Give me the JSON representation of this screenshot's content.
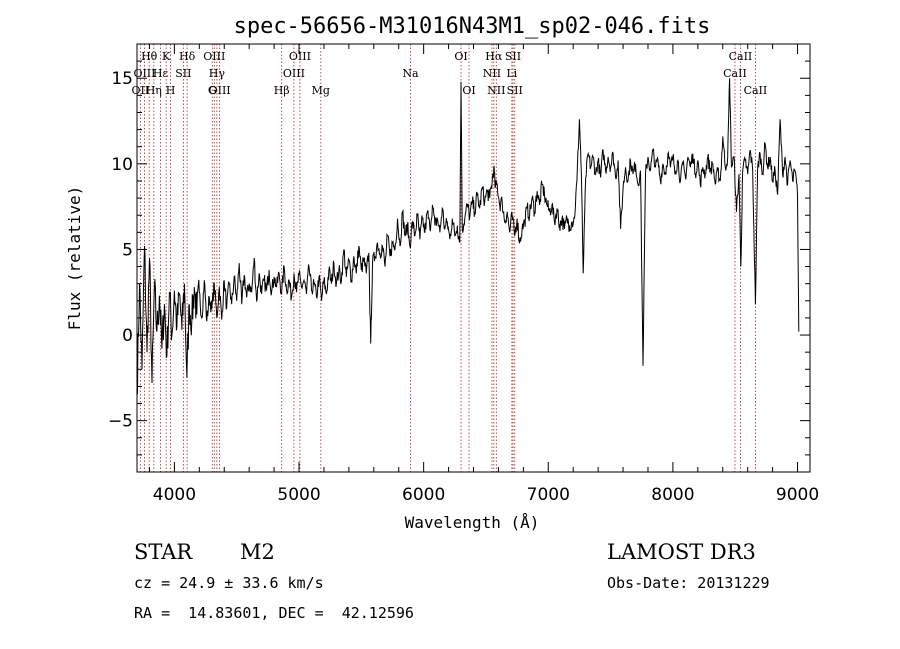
{
  "chart_data": {
    "type": "line",
    "title": "spec-56656-M31016N43M1_sp02-046.fits",
    "xlabel": "Wavelength (Å)",
    "ylabel": "Flux (relative)",
    "xlim": [
      3700,
      9100
    ],
    "ylim": [
      -8,
      17
    ],
    "xticks": [
      4000,
      5000,
      6000,
      7000,
      8000,
      9000
    ],
    "yticks": [
      -5,
      0,
      5,
      10,
      15
    ],
    "x_minor_step": 200,
    "y_minor_step": 1,
    "spectrum": [
      [
        3700,
        -3.5
      ],
      [
        3720,
        3.0
      ],
      [
        3740,
        -2.0
      ],
      [
        3760,
        5.2
      ],
      [
        3780,
        -1.0
      ],
      [
        3800,
        4.5
      ],
      [
        3820,
        -2.8
      ],
      [
        3840,
        2.8
      ],
      [
        3860,
        0.2
      ],
      [
        3880,
        2.3
      ],
      [
        3900,
        -0.8
      ],
      [
        3920,
        1.8
      ],
      [
        3940,
        -1.2
      ],
      [
        3960,
        2.5
      ],
      [
        3980,
        0.0
      ],
      [
        4000,
        2.6
      ],
      [
        4020,
        0.5
      ],
      [
        4040,
        2.4
      ],
      [
        4060,
        0.3
      ],
      [
        4080,
        3.0
      ],
      [
        4100,
        -2.5
      ],
      [
        4120,
        1.8
      ],
      [
        4140,
        0.8
      ],
      [
        4160,
        2.8
      ],
      [
        4180,
        1.2
      ],
      [
        4200,
        2.5
      ],
      [
        4220,
        1.0
      ],
      [
        4240,
        3.2
      ],
      [
        4260,
        0.8
      ],
      [
        4280,
        2.2
      ],
      [
        4300,
        1.5
      ],
      [
        4320,
        3.0
      ],
      [
        4340,
        1.0
      ],
      [
        4360,
        2.8
      ],
      [
        4380,
        0.9
      ],
      [
        4400,
        3.2
      ],
      [
        4420,
        1.6
      ],
      [
        4440,
        3.0
      ],
      [
        4460,
        1.8
      ],
      [
        4480,
        3.4
      ],
      [
        4500,
        2.0
      ],
      [
        4520,
        4.2
      ],
      [
        4540,
        1.8
      ],
      [
        4560,
        3.5
      ],
      [
        4580,
        2.2
      ],
      [
        4600,
        3.0
      ],
      [
        4620,
        2.5
      ],
      [
        4640,
        4.5
      ],
      [
        4660,
        2.0
      ],
      [
        4680,
        3.6
      ],
      [
        4700,
        2.4
      ],
      [
        4720,
        3.2
      ],
      [
        4740,
        2.6
      ],
      [
        4760,
        3.8
      ],
      [
        4780,
        2.5
      ],
      [
        4800,
        3.4
      ],
      [
        4820,
        2.8
      ],
      [
        4840,
        3.6
      ],
      [
        4860,
        2.4
      ],
      [
        4880,
        4.0
      ],
      [
        4900,
        2.6
      ],
      [
        4920,
        3.2
      ],
      [
        4940,
        2.2
      ],
      [
        4960,
        3.6
      ],
      [
        4980,
        2.5
      ],
      [
        5000,
        3.5
      ],
      [
        5020,
        2.8
      ],
      [
        5040,
        3.2
      ],
      [
        5060,
        2.4
      ],
      [
        5080,
        4.0
      ],
      [
        5100,
        2.6
      ],
      [
        5120,
        3.0
      ],
      [
        5140,
        2.2
      ],
      [
        5160,
        3.4
      ],
      [
        5180,
        2.0
      ],
      [
        5200,
        3.2
      ],
      [
        5220,
        2.4
      ],
      [
        5240,
        3.8
      ],
      [
        5260,
        3.0
      ],
      [
        5280,
        4.2
      ],
      [
        5300,
        3.0
      ],
      [
        5320,
        3.8
      ],
      [
        5340,
        3.2
      ],
      [
        5360,
        5.0
      ],
      [
        5380,
        3.4
      ],
      [
        5400,
        4.4
      ],
      [
        5420,
        3.2
      ],
      [
        5440,
        4.6
      ],
      [
        5460,
        3.6
      ],
      [
        5480,
        5.2
      ],
      [
        5500,
        3.8
      ],
      [
        5520,
        4.4
      ],
      [
        5540,
        3.6
      ],
      [
        5560,
        4.8
      ],
      [
        5575,
        -0.5
      ],
      [
        5590,
        4.2
      ],
      [
        5610,
        4.6
      ],
      [
        5630,
        5.4
      ],
      [
        5650,
        4.8
      ],
      [
        5670,
        5.2
      ],
      [
        5690,
        4.0
      ],
      [
        5710,
        5.8
      ],
      [
        5730,
        4.6
      ],
      [
        5750,
        5.4
      ],
      [
        5770,
        5.0
      ],
      [
        5790,
        6.8
      ],
      [
        5810,
        5.2
      ],
      [
        5830,
        7.2
      ],
      [
        5850,
        5.8
      ],
      [
        5870,
        6.4
      ],
      [
        5890,
        5.2
      ],
      [
        5910,
        6.6
      ],
      [
        5930,
        5.8
      ],
      [
        5950,
        7.0
      ],
      [
        5970,
        5.6
      ],
      [
        5990,
        6.8
      ],
      [
        6010,
        6.0
      ],
      [
        6030,
        7.2
      ],
      [
        6050,
        6.2
      ],
      [
        6070,
        7.6
      ],
      [
        6090,
        6.4
      ],
      [
        6110,
        6.8
      ],
      [
        6130,
        6.0
      ],
      [
        6150,
        7.4
      ],
      [
        6170,
        6.2
      ],
      [
        6190,
        6.6
      ],
      [
        6210,
        5.6
      ],
      [
        6230,
        6.8
      ],
      [
        6250,
        5.8
      ],
      [
        6270,
        6.4
      ],
      [
        6290,
        5.4
      ],
      [
        6300,
        14.8
      ],
      [
        6310,
        6.2
      ],
      [
        6330,
        6.8
      ],
      [
        6350,
        7.6
      ],
      [
        6370,
        6.9
      ],
      [
        6390,
        7.8
      ],
      [
        6410,
        7.2
      ],
      [
        6430,
        8.2
      ],
      [
        6450,
        7.4
      ],
      [
        6470,
        8.6
      ],
      [
        6490,
        7.8
      ],
      [
        6510,
        8.4
      ],
      [
        6530,
        8.0
      ],
      [
        6550,
        9.0
      ],
      [
        6563,
        9.8
      ],
      [
        6575,
        8.6
      ],
      [
        6590,
        8.8
      ],
      [
        6610,
        7.6
      ],
      [
        6630,
        7.8
      ],
      [
        6650,
        6.6
      ],
      [
        6670,
        7.2
      ],
      [
        6690,
        6.0
      ],
      [
        6710,
        7.0
      ],
      [
        6730,
        5.8
      ],
      [
        6750,
        6.8
      ],
      [
        6770,
        5.4
      ],
      [
        6790,
        6.2
      ],
      [
        6810,
        6.6
      ],
      [
        6830,
        7.4
      ],
      [
        6850,
        7.0
      ],
      [
        6870,
        8.0
      ],
      [
        6890,
        7.2
      ],
      [
        6910,
        8.4
      ],
      [
        6930,
        7.6
      ],
      [
        6950,
        8.8
      ],
      [
        6970,
        8.2
      ],
      [
        6990,
        7.6
      ],
      [
        7010,
        7.2
      ],
      [
        7030,
        7.6
      ],
      [
        7050,
        6.6
      ],
      [
        7070,
        7.4
      ],
      [
        7090,
        6.4
      ],
      [
        7110,
        6.8
      ],
      [
        7130,
        6.2
      ],
      [
        7150,
        6.8
      ],
      [
        7170,
        6.4
      ],
      [
        7190,
        6.6
      ],
      [
        7210,
        6.8
      ],
      [
        7230,
        9.0
      ],
      [
        7250,
        12.6
      ],
      [
        7265,
        9.6
      ],
      [
        7280,
        3.6
      ],
      [
        7300,
        9.2
      ],
      [
        7320,
        10.6
      ],
      [
        7340,
        9.8
      ],
      [
        7360,
        10.4
      ],
      [
        7380,
        9.4
      ],
      [
        7400,
        10.2
      ],
      [
        7420,
        9.2
      ],
      [
        7440,
        10.8
      ],
      [
        7460,
        9.6
      ],
      [
        7480,
        10.4
      ],
      [
        7500,
        9.8
      ],
      [
        7520,
        10.6
      ],
      [
        7540,
        9.2
      ],
      [
        7560,
        10.2
      ],
      [
        7580,
        6.2
      ],
      [
        7600,
        8.6
      ],
      [
        7620,
        9.8
      ],
      [
        7640,
        9.0
      ],
      [
        7660,
        10.2
      ],
      [
        7680,
        9.4
      ],
      [
        7700,
        10.0
      ],
      [
        7720,
        8.8
      ],
      [
        7740,
        9.6
      ],
      [
        7760,
        -1.8
      ],
      [
        7780,
        9.4
      ],
      [
        7800,
        10.4
      ],
      [
        7820,
        9.6
      ],
      [
        7840,
        10.8
      ],
      [
        7860,
        9.8
      ],
      [
        7880,
        10.2
      ],
      [
        7900,
        9.0
      ],
      [
        7920,
        10.0
      ],
      [
        7940,
        9.4
      ],
      [
        7960,
        10.6
      ],
      [
        7980,
        9.8
      ],
      [
        8000,
        10.4
      ],
      [
        8020,
        9.6
      ],
      [
        8040,
        10.2
      ],
      [
        8060,
        9.0
      ],
      [
        8080,
        10.0
      ],
      [
        8100,
        9.2
      ],
      [
        8120,
        10.4
      ],
      [
        8140,
        9.8
      ],
      [
        8160,
        10.6
      ],
      [
        8180,
        9.4
      ],
      [
        8200,
        10.2
      ],
      [
        8220,
        8.8
      ],
      [
        8240,
        9.8
      ],
      [
        8260,
        9.4
      ],
      [
        8280,
        10.4
      ],
      [
        8300,
        9.6
      ],
      [
        8320,
        10.0
      ],
      [
        8340,
        8.8
      ],
      [
        8360,
        9.6
      ],
      [
        8380,
        9.0
      ],
      [
        8400,
        11.6
      ],
      [
        8420,
        9.8
      ],
      [
        8440,
        10.4
      ],
      [
        8455,
        15.0
      ],
      [
        8470,
        9.8
      ],
      [
        8490,
        10.4
      ],
      [
        8510,
        7.2
      ],
      [
        8530,
        9.4
      ],
      [
        8545,
        4.0
      ],
      [
        8560,
        9.6
      ],
      [
        8580,
        10.2
      ],
      [
        8600,
        9.4
      ],
      [
        8620,
        10.8
      ],
      [
        8640,
        9.6
      ],
      [
        8662,
        1.8
      ],
      [
        8680,
        9.8
      ],
      [
        8700,
        10.6
      ],
      [
        8720,
        9.4
      ],
      [
        8740,
        11.2
      ],
      [
        8760,
        9.8
      ],
      [
        8780,
        10.4
      ],
      [
        8800,
        9.0
      ],
      [
        8820,
        9.6
      ],
      [
        8840,
        8.2
      ],
      [
        8860,
        12.6
      ],
      [
        8880,
        9.4
      ],
      [
        8900,
        10.4
      ],
      [
        8920,
        8.8
      ],
      [
        8940,
        10.2
      ],
      [
        8960,
        9.0
      ],
      [
        8980,
        9.6
      ],
      [
        9000,
        8.2
      ],
      [
        9010,
        0.2
      ]
    ],
    "lines": [
      {
        "label": "Hθ",
        "wl": 3798,
        "row": 0
      },
      {
        "label": "OII",
        "wl": 3727,
        "row": 2
      },
      {
        "label": "OIII",
        "wl": 3760,
        "row": 1
      },
      {
        "label": "Hη",
        "wl": 3835,
        "row": 2
      },
      {
        "label": "Hε",
        "wl": 3889,
        "row": 1
      },
      {
        "label": "K",
        "wl": 3934,
        "row": 0
      },
      {
        "label": "H",
        "wl": 3969,
        "row": 2
      },
      {
        "label": "SII",
        "wl": 4072,
        "row": 1
      },
      {
        "label": "Hδ",
        "wl": 4102,
        "row": 0
      },
      {
        "label": "OIII",
        "wl": 4320,
        "row": 0
      },
      {
        "label": "Hγ",
        "wl": 4341,
        "row": 1
      },
      {
        "label": "G",
        "wl": 4304,
        "row": 2
      },
      {
        "label": "OIII",
        "wl": 4363,
        "row": 2
      },
      {
        "label": "Hβ",
        "wl": 4861,
        "row": 2
      },
      {
        "label": "OIII",
        "wl": 4959,
        "row": 1
      },
      {
        "label": "OIII",
        "wl": 5007,
        "row": 0
      },
      {
        "label": "Mg",
        "wl": 5175,
        "row": 2
      },
      {
        "label": "Na",
        "wl": 5894,
        "row": 1
      },
      {
        "label": "OI",
        "wl": 6300,
        "row": 0
      },
      {
        "label": "OI",
        "wl": 6364,
        "row": 2
      },
      {
        "label": "NII",
        "wl": 6548,
        "row": 1
      },
      {
        "label": "Hα",
        "wl": 6563,
        "row": 0
      },
      {
        "label": "NII",
        "wl": 6583,
        "row": 2
      },
      {
        "label": "SII",
        "wl": 6717,
        "row": 0
      },
      {
        "label": "Li",
        "wl": 6708,
        "row": 1
      },
      {
        "label": "SII",
        "wl": 6731,
        "row": 2
      },
      {
        "label": "CaII",
        "wl": 8498,
        "row": 1
      },
      {
        "label": "CaII",
        "wl": 8542,
        "row": 0
      },
      {
        "label": "CaII",
        "wl": 8662,
        "row": 2
      }
    ]
  },
  "info": {
    "class": "STAR",
    "subclass": "M2",
    "survey": "LAMOST DR3",
    "cz": "cz = 24.9 ± 33.6 km/s",
    "obs_date": "Obs-Date: 20131229",
    "radec": "RA =  14.83601, DEC =  42.12596"
  },
  "colors": {
    "spectrum": "#000000",
    "line_markers": "#b22222",
    "axes": "#000000",
    "background": "#ffffff"
  }
}
